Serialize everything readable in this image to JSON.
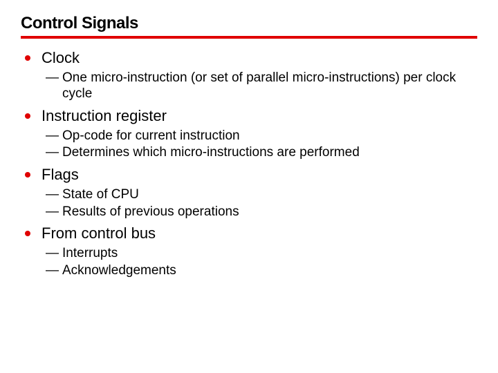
{
  "title": "Control Signals",
  "colors": {
    "accent": "#e00000",
    "text": "#000000",
    "background": "#ffffff"
  },
  "bullets": [
    {
      "label": "Clock",
      "subs": [
        "One micro-instruction (or set of parallel micro-instructions) per clock cycle"
      ]
    },
    {
      "label": "Instruction register",
      "subs": [
        "Op-code for current instruction",
        "Determines which micro-instructions are performed"
      ]
    },
    {
      "label": "Flags",
      "subs": [
        "State of CPU",
        "Results of previous operations"
      ]
    },
    {
      "label": "From control bus",
      "subs": [
        "Interrupts",
        "Acknowledgements"
      ]
    }
  ]
}
